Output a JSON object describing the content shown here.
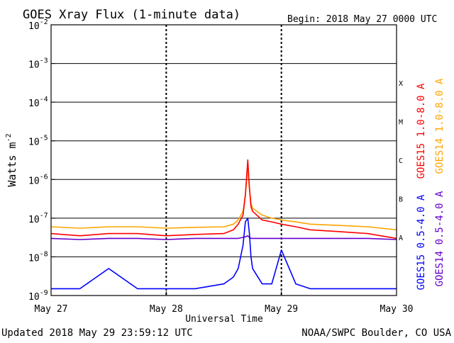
{
  "header": {
    "title": "GOES Xray Flux (1-minute data)",
    "begin_label": "Begin:  2018 May 27 0000 UTC"
  },
  "footer": {
    "updated": "Updated 2018 May 29 23:59:12 UTC",
    "credit": "NOAA/SWPC Boulder, CO USA"
  },
  "colors": {
    "goes15_long": "#ff0000",
    "goes14_long": "#ffa500",
    "goes15_short": "#0000ff",
    "goes14_short": "#6600cc",
    "axes": "#000000",
    "background": "#ffffff"
  },
  "chart_data": {
    "type": "line",
    "title": "GOES Xray Flux (1-minute data)",
    "xlabel": "Universal Time",
    "ylabel": "Watts m",
    "ylabel_superscript": "-2",
    "yscale": "log",
    "ylim": [
      1e-09,
      0.01
    ],
    "y_ticks": [
      {
        "value": 0.01,
        "base": "10",
        "exp": "-2"
      },
      {
        "value": 0.001,
        "base": "10",
        "exp": "-3"
      },
      {
        "value": 0.0001,
        "base": "10",
        "exp": "-4"
      },
      {
        "value": 1e-05,
        "base": "10",
        "exp": "-5"
      },
      {
        "value": 1e-06,
        "base": "10",
        "exp": "-6"
      },
      {
        "value": 1e-07,
        "base": "10",
        "exp": "-7"
      },
      {
        "value": 1e-08,
        "base": "10",
        "exp": "-8"
      },
      {
        "value": 1e-09,
        "base": "10",
        "exp": "-9"
      }
    ],
    "xlim": [
      "2018-05-27",
      "2018-05-30"
    ],
    "x_ticks": [
      "May 27",
      "May 28",
      "May 29",
      "May 30"
    ],
    "flare_classes": [
      {
        "label": "X",
        "value": 0.0001
      },
      {
        "label": "M",
        "value": 1e-05
      },
      {
        "label": "C",
        "value": 1e-06
      },
      {
        "label": "B",
        "value": 1e-07
      },
      {
        "label": "A",
        "value": 1e-08
      }
    ],
    "grid": "horizontal lines at each decade, dotted vertical lines at each day",
    "legend_placement": "right, vertical",
    "series": [
      {
        "name": "GOES15 1.0-8.0 A",
        "color": "#ff0000",
        "x": [
          "2018-05-27 00:00",
          "2018-05-27 06:00",
          "2018-05-27 12:00",
          "2018-05-27 18:00",
          "2018-05-28 00:00",
          "2018-05-28 06:00",
          "2018-05-28 12:00",
          "2018-05-28 14:00",
          "2018-05-28 15:00",
          "2018-05-28 16:00",
          "2018-05-28 16:30",
          "2018-05-28 17:00",
          "2018-05-28 17:20",
          "2018-05-28 17:40",
          "2018-05-28 18:00",
          "2018-05-28 20:00",
          "2018-05-28 22:00",
          "2018-05-29 00:00",
          "2018-05-29 03:00",
          "2018-05-29 06:00",
          "2018-05-29 12:00",
          "2018-05-29 18:00",
          "2018-05-30 00:00"
        ],
        "values": [
          4e-08,
          3.5e-08,
          4e-08,
          4e-08,
          3.5e-08,
          3.8e-08,
          4e-08,
          5e-08,
          7e-08,
          1.2e-07,
          4e-07,
          3.2e-06,
          6e-07,
          2e-07,
          1.5e-07,
          9e-08,
          8e-08,
          7e-08,
          6e-08,
          5e-08,
          4.5e-08,
          4e-08,
          3e-08
        ]
      },
      {
        "name": "GOES14 1.0-8.0 A",
        "color": "#ffa500",
        "x": [
          "2018-05-27 00:00",
          "2018-05-27 06:00",
          "2018-05-27 12:00",
          "2018-05-27 18:00",
          "2018-05-28 00:00",
          "2018-05-28 06:00",
          "2018-05-28 12:00",
          "2018-05-28 14:00",
          "2018-05-28 15:00",
          "2018-05-28 16:00",
          "2018-05-28 16:30",
          "2018-05-28 17:00",
          "2018-05-28 17:20",
          "2018-05-28 17:40",
          "2018-05-28 18:00",
          "2018-05-28 20:00",
          "2018-05-28 22:00",
          "2018-05-29 00:00",
          "2018-05-29 03:00",
          "2018-05-29 06:00",
          "2018-05-29 12:00",
          "2018-05-29 18:00",
          "2018-05-30 00:00"
        ],
        "values": [
          6e-08,
          5.5e-08,
          6e-08,
          6e-08,
          5.5e-08,
          5.8e-08,
          6e-08,
          7e-08,
          9e-08,
          1.5e-07,
          4e-07,
          2e-06,
          6e-07,
          2.5e-07,
          1.8e-07,
          1.2e-07,
          1e-07,
          9e-08,
          8e-08,
          7e-08,
          6.5e-08,
          6e-08,
          5e-08
        ]
      },
      {
        "name": "GOES15 0.5-4.0 A",
        "color": "#0000ff",
        "x": [
          "2018-05-27 00:00",
          "2018-05-27 06:00",
          "2018-05-27 12:00",
          "2018-05-27 18:00",
          "2018-05-28 00:00",
          "2018-05-28 06:00",
          "2018-05-28 12:00",
          "2018-05-28 14:00",
          "2018-05-28 15:00",
          "2018-05-28 16:00",
          "2018-05-28 16:30",
          "2018-05-28 17:00",
          "2018-05-28 17:20",
          "2018-05-28 17:40",
          "2018-05-28 18:00",
          "2018-05-28 20:00",
          "2018-05-28 22:00",
          "2018-05-29 00:00",
          "2018-05-29 03:00",
          "2018-05-29 06:00",
          "2018-05-29 12:00",
          "2018-05-29 18:00",
          "2018-05-30 00:00"
        ],
        "values": [
          1.5e-09,
          1.5e-09,
          5e-09,
          1.5e-09,
          1.5e-09,
          1.5e-09,
          2e-09,
          3e-09,
          5e-09,
          2e-08,
          8e-08,
          1e-07,
          4e-08,
          1e-08,
          5e-09,
          2e-09,
          2e-09,
          1.5e-08,
          2e-09,
          1.5e-09,
          1.5e-09,
          1.5e-09,
          1.5e-09
        ]
      },
      {
        "name": "GOES14 0.5-4.0 A",
        "color": "#6600cc",
        "x": [
          "2018-05-27 00:00",
          "2018-05-27 06:00",
          "2018-05-27 12:00",
          "2018-05-27 18:00",
          "2018-05-28 00:00",
          "2018-05-28 06:00",
          "2018-05-28 12:00",
          "2018-05-28 14:00",
          "2018-05-28 15:00",
          "2018-05-28 16:00",
          "2018-05-28 16:30",
          "2018-05-28 17:00",
          "2018-05-28 17:20",
          "2018-05-28 17:40",
          "2018-05-28 18:00",
          "2018-05-28 20:00",
          "2018-05-28 22:00",
          "2018-05-29 00:00",
          "2018-05-29 03:00",
          "2018-05-29 06:00",
          "2018-05-29 12:00",
          "2018-05-29 18:00",
          "2018-05-30 00:00"
        ],
        "values": [
          3e-08,
          2.8e-08,
          3e-08,
          3e-08,
          2.8e-08,
          3e-08,
          3e-08,
          3e-08,
          3e-08,
          3.2e-08,
          3.3e-08,
          3.5e-08,
          3.2e-08,
          3e-08,
          3e-08,
          3e-08,
          3e-08,
          3e-08,
          3e-08,
          3e-08,
          3e-08,
          3e-08,
          2.8e-08
        ]
      }
    ]
  }
}
